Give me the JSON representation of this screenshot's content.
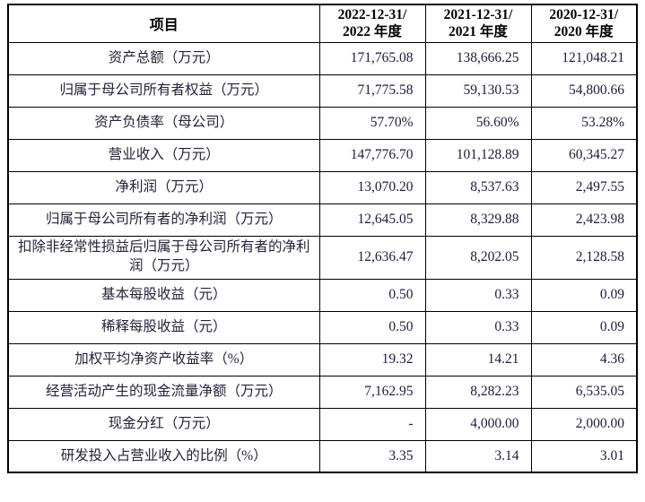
{
  "table": {
    "header": {
      "item": "项目",
      "periods": [
        {
          "line1": "2022-12-31/",
          "line2": "2022 年度"
        },
        {
          "line1": "2021-12-31/",
          "line2": "2021 年度"
        },
        {
          "line1": "2020-12-31/",
          "line2": "2020 年度"
        }
      ]
    },
    "rows": [
      {
        "label": "资产总额（万元）",
        "values": [
          "171,765.08",
          "138,666.25",
          "121,048.21"
        ]
      },
      {
        "label": "归属于母公司所有者权益（万元）",
        "values": [
          "71,775.58",
          "59,130.53",
          "54,800.66"
        ]
      },
      {
        "label": "资产负债率（母公司）",
        "values": [
          "57.70%",
          "56.60%",
          "53.28%"
        ]
      },
      {
        "label": "营业收入（万元）",
        "values": [
          "147,776.70",
          "101,128.89",
          "60,345.27"
        ]
      },
      {
        "label": "净利润（万元）",
        "values": [
          "13,070.20",
          "8,537.63",
          "2,497.55"
        ]
      },
      {
        "label": "归属于母公司所有者的净利润（万元）",
        "values": [
          "12,645.05",
          "8,329.88",
          "2,423.98"
        ]
      },
      {
        "label": "扣除非经常性损益后归属于母公司所有者的净利润（万元）",
        "values": [
          "12,636.47",
          "8,202.05",
          "2,128.58"
        ]
      },
      {
        "label": "基本每股收益（元）",
        "values": [
          "0.50",
          "0.33",
          "0.09"
        ]
      },
      {
        "label": "稀释每股收益（元）",
        "values": [
          "0.50",
          "0.33",
          "0.09"
        ]
      },
      {
        "label": "加权平均净资产收益率（%）",
        "values": [
          "19.32",
          "14.21",
          "4.36"
        ]
      },
      {
        "label": "经营活动产生的现金流量净额（万元）",
        "values": [
          "7,162.95",
          "8,282.23",
          "6,535.05"
        ]
      },
      {
        "label": "现金分红（万元）",
        "values": [
          "-",
          "4,000.00",
          "2,000.00"
        ]
      },
      {
        "label": "研发投入占营业收入的比例（%）",
        "values": [
          "3.35",
          "3.14",
          "3.01"
        ]
      }
    ]
  }
}
